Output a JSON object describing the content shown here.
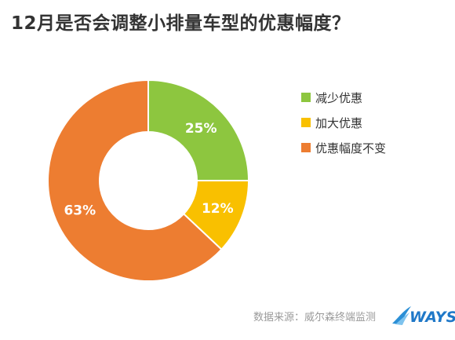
{
  "title": "12月是否会调整小排量车型的优惠幅度？",
  "chart_data": {
    "type": "pie",
    "donut": true,
    "categories": [
      "减少优惠",
      "加大优惠",
      "优惠幅度不变"
    ],
    "values": [
      25,
      12,
      63
    ],
    "data_labels": [
      "25%",
      "12%",
      "63%"
    ],
    "colors": [
      "#8dc63f",
      "#f9c000",
      "#ed7d31"
    ],
    "legend_position": "right"
  },
  "source": "数据来源：威尔森终端监测",
  "logo_text": "WAYS"
}
